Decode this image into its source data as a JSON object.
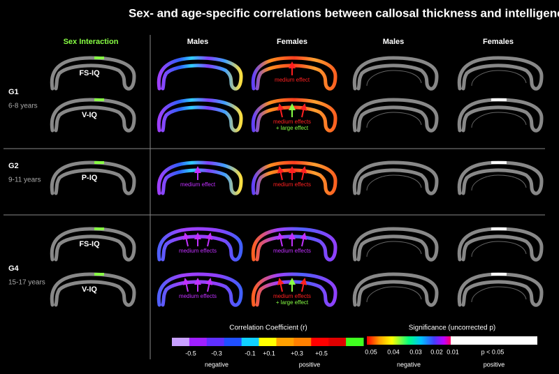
{
  "title": "Sex- and age-specific correlations between callosal thickness and intelligence",
  "columns": [
    "Sex Interaction",
    "Males",
    "Females",
    "Males",
    "Females"
  ],
  "groups": [
    {
      "name": "G1",
      "age": "6-8 years",
      "rows": [
        {
          "measure": "FS-IQ",
          "annotations": {
            "females": [
              "medium effect"
            ]
          }
        },
        {
          "measure": "V-IQ",
          "annotations": {
            "females": [
              "medium effects",
              "+ large effect"
            ]
          }
        }
      ]
    },
    {
      "name": "G2",
      "age": "9-11 years",
      "rows": [
        {
          "measure": "P-IQ",
          "annotations": {
            "males": [
              "medium effect"
            ],
            "females": [
              "medium effects"
            ]
          }
        }
      ]
    },
    {
      "name": "G4",
      "age": "15-17 years",
      "rows": [
        {
          "measure": "FS-IQ",
          "annotations": {
            "males": [
              "medium effects"
            ],
            "females": [
              "medium effects"
            ]
          }
        },
        {
          "measure": "V-IQ",
          "annotations": {
            "males": [
              "medium effects"
            ],
            "females": [
              "medium effects",
              "+ large effect"
            ]
          }
        }
      ]
    }
  ],
  "legend_correlation": {
    "title": "Correlation Coefficient (r)",
    "ticks": [
      "-0.5",
      "-0.3",
      "-0.1",
      "+0.1",
      "+0.3",
      "+0.5"
    ],
    "sides": [
      "negative",
      "positive"
    ]
  },
  "legend_significance": {
    "title": "Significance (uncorrected p)",
    "ticks": [
      "0.05",
      "0.04",
      "0.03",
      "0.02",
      "0.01"
    ],
    "threshold": "p < 0.05",
    "sides": [
      "negative",
      "positive"
    ]
  }
}
